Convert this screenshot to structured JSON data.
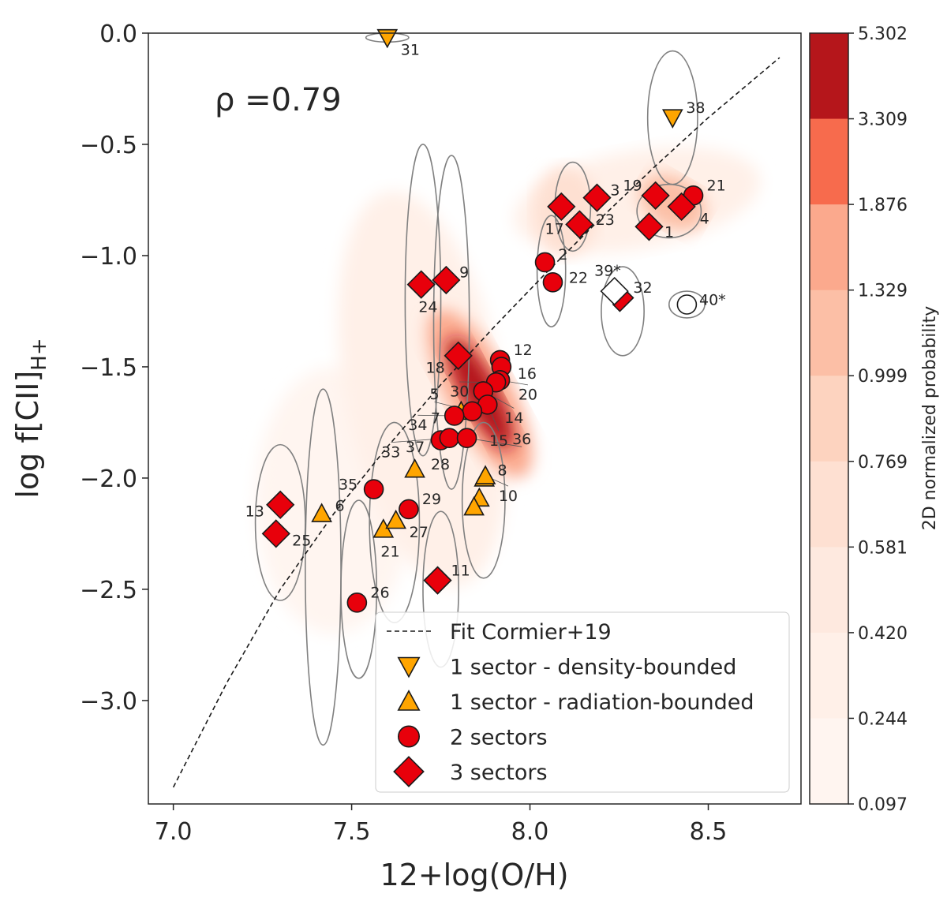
{
  "chart_data": {
    "type": "scatter",
    "xlabel": "12+log(O/H)",
    "ylabel": "log f[CII]",
    "ylabel_sub": "H+",
    "xlim": [
      6.93,
      8.76
    ],
    "ylim": [
      -3.465,
      0.0
    ],
    "xticks": [
      "7.0",
      "7.5",
      "8.0",
      "8.5"
    ],
    "xtick_values": [
      7.0,
      7.5,
      8.0,
      8.5
    ],
    "yticks": [
      "0.0",
      "−0.5",
      "−1.0",
      "−1.5",
      "−2.0",
      "−2.5",
      "−3.0"
    ],
    "ytick_values": [
      0.0,
      -0.5,
      -1.0,
      -1.5,
      -2.0,
      -2.5,
      -3.0
    ],
    "annotation": "ρ =0.79",
    "colorbar": {
      "label": "2D normalized probability",
      "ticks": [
        "5.302",
        "3.309",
        "1.876",
        "1.329",
        "0.999",
        "0.769",
        "0.581",
        "0.420",
        "0.244",
        "0.097"
      ],
      "band_colors": [
        "#b5161b",
        "#f76b4d",
        "#fba98d",
        "#fcbfa6",
        "#fdd3bf",
        "#fee0d2",
        "#fee9df",
        "#fff0e8",
        "#fff5f0"
      ]
    },
    "legend": {
      "placement": "lower-right",
      "entries": [
        {
          "label": "Fit Cormier+19",
          "kind": "line"
        },
        {
          "label": "1 sector - density-bounded",
          "kind": "tri-down"
        },
        {
          "label": "1 sector - radiation-bounded",
          "kind": "tri-up"
        },
        {
          "label": "2 sectors",
          "kind": "circle"
        },
        {
          "label": "3 sectors",
          "kind": "diamond"
        }
      ]
    },
    "colors": {
      "orange": "#ffa500",
      "red": "#e8000b",
      "fit": "#1a1a1a",
      "ellipse": "#808080"
    },
    "fit_line": [
      [
        7.0,
        -3.39
      ],
      [
        7.15,
        -2.92
      ],
      [
        7.3,
        -2.5
      ],
      [
        7.45,
        -2.16
      ],
      [
        7.6,
        -1.86
      ],
      [
        7.75,
        -1.58
      ],
      [
        7.9,
        -1.32
      ],
      [
        8.05,
        -1.07
      ],
      [
        8.2,
        -0.83
      ],
      [
        8.35,
        -0.6
      ],
      [
        8.5,
        -0.38
      ],
      [
        8.7,
        -0.11
      ]
    ],
    "points": [
      {
        "id": "31",
        "type": "tri-down",
        "x": 7.6,
        "y": -0.02
      },
      {
        "id": "38",
        "type": "tri-down",
        "x": 8.4,
        "y": -0.38
      },
      {
        "id": "6",
        "type": "tri-up",
        "x": 7.416,
        "y": -2.16
      },
      {
        "id": "21",
        "type": "tri-up",
        "x": 7.589,
        "y": -2.23
      },
      {
        "id": "27",
        "type": "tri-up",
        "x": 7.624,
        "y": -2.19
      },
      {
        "id": "28",
        "type": "tri-up",
        "x": 7.677,
        "y": -1.96
      },
      {
        "id": "7",
        "type": "tri-up",
        "x": 7.807,
        "y": -1.7
      },
      {
        "id": "8",
        "type": "tri-up",
        "x": 7.872,
        "y": -2.0
      },
      {
        "id": "",
        "type": "tri-up",
        "x": 7.858,
        "y": -2.09
      },
      {
        "id": "",
        "type": "tri-up",
        "x": 7.843,
        "y": -2.13
      },
      {
        "id": "10",
        "type": "tri-up",
        "x": 7.875,
        "y": -1.99
      },
      {
        "id": "35",
        "type": "circle",
        "x": 7.562,
        "y": -2.05
      },
      {
        "id": "29",
        "type": "circle",
        "x": 7.66,
        "y": -2.14
      },
      {
        "id": "26",
        "type": "circle",
        "x": 7.515,
        "y": -2.56
      },
      {
        "id": "2",
        "type": "circle",
        "x": 8.042,
        "y": -1.03
      },
      {
        "id": "22",
        "type": "circle",
        "x": 8.064,
        "y": -1.12
      },
      {
        "id": "21",
        "type": "circle",
        "x": 8.458,
        "y": -0.73
      },
      {
        "id": "12",
        "type": "circle",
        "x": 7.916,
        "y": -1.47
      },
      {
        "id": "16",
        "type": "circle",
        "x": 7.92,
        "y": -1.5
      },
      {
        "id": "20",
        "type": "circle",
        "x": 7.916,
        "y": -1.56
      },
      {
        "id": "30",
        "type": "circle",
        "x": 7.905,
        "y": -1.57
      },
      {
        "id": "14",
        "type": "circle",
        "x": 7.869,
        "y": -1.61
      },
      {
        "id": "15",
        "type": "circle",
        "x": 7.881,
        "y": -1.67
      },
      {
        "id": "5",
        "type": "circle",
        "x": 7.838,
        "y": -1.7
      },
      {
        "id": "34",
        "type": "circle",
        "x": 7.788,
        "y": -1.72
      },
      {
        "id": "37",
        "type": "circle",
        "x": 7.75,
        "y": -1.83
      },
      {
        "id": "33",
        "type": "circle",
        "x": 7.774,
        "y": -1.82
      },
      {
        "id": "36",
        "type": "circle",
        "x": 7.823,
        "y": -1.82
      },
      {
        "id": "13",
        "type": "diamond",
        "x": 7.3,
        "y": -2.12
      },
      {
        "id": "25",
        "type": "diamond",
        "x": 7.288,
        "y": -2.25
      },
      {
        "id": "11",
        "type": "diamond",
        "x": 7.741,
        "y": -2.46
      },
      {
        "id": "24",
        "type": "diamond",
        "x": 7.695,
        "y": -1.13
      },
      {
        "id": "9",
        "type": "diamond",
        "x": 7.765,
        "y": -1.11
      },
      {
        "id": "18",
        "type": "diamond",
        "x": 7.799,
        "y": -1.45
      },
      {
        "id": "17",
        "type": "diamond",
        "x": 8.088,
        "y": -0.78
      },
      {
        "id": "23",
        "type": "diamond",
        "x": 8.139,
        "y": -0.86
      },
      {
        "id": "3",
        "type": "diamond",
        "x": 8.188,
        "y": -0.74
      },
      {
        "id": "19",
        "type": "diamond",
        "x": 8.352,
        "y": -0.73
      },
      {
        "id": "1",
        "type": "diamond",
        "x": 8.334,
        "y": -0.87
      },
      {
        "id": "4",
        "type": "diamond",
        "x": 8.425,
        "y": -0.78
      },
      {
        "id": "32",
        "type": "diamond-half",
        "x": 8.252,
        "y": -1.19
      },
      {
        "id": "39*",
        "type": "diamond-white",
        "x": 8.237,
        "y": -1.16
      },
      {
        "id": "40*",
        "type": "circle-open",
        "x": 8.44,
        "y": -1.22
      }
    ],
    "ellipses": [
      {
        "cx": 7.6,
        "cy": -0.02,
        "rx": 0.06,
        "ry": 0.02
      },
      {
        "cx": 8.4,
        "cy": -0.38,
        "rx": 0.07,
        "ry": 0.3
      },
      {
        "cx": 7.3,
        "cy": -2.2,
        "rx": 0.07,
        "ry": 0.35
      },
      {
        "cx": 7.42,
        "cy": -2.4,
        "rx": 0.05,
        "ry": 0.8
      },
      {
        "cx": 7.52,
        "cy": -2.5,
        "rx": 0.05,
        "ry": 0.4
      },
      {
        "cx": 7.62,
        "cy": -2.2,
        "rx": 0.07,
        "ry": 0.45
      },
      {
        "cx": 7.7,
        "cy": -1.2,
        "rx": 0.05,
        "ry": 0.7
      },
      {
        "cx": 7.78,
        "cy": -1.3,
        "rx": 0.05,
        "ry": 0.75
      },
      {
        "cx": 7.75,
        "cy": -2.5,
        "rx": 0.05,
        "ry": 0.35
      },
      {
        "cx": 7.87,
        "cy": -2.1,
        "rx": 0.06,
        "ry": 0.35
      },
      {
        "cx": 8.06,
        "cy": -1.07,
        "rx": 0.04,
        "ry": 0.25
      },
      {
        "cx": 8.12,
        "cy": -0.78,
        "rx": 0.05,
        "ry": 0.2
      },
      {
        "cx": 8.26,
        "cy": -1.25,
        "rx": 0.06,
        "ry": 0.2
      },
      {
        "cx": 8.44,
        "cy": -1.22,
        "rx": 0.05,
        "ry": 0.06
      },
      {
        "cx": 8.39,
        "cy": -0.8,
        "rx": 0.09,
        "ry": 0.12
      }
    ],
    "density_blobs": [
      {
        "cx": 7.86,
        "cy": -1.62,
        "rx": 0.05,
        "ry": 0.28,
        "rot": -28,
        "level": 0
      },
      {
        "cx": 7.86,
        "cy": -1.62,
        "rx": 0.09,
        "ry": 0.42,
        "rot": -28,
        "level": 2
      },
      {
        "cx": 8.4,
        "cy": -0.76,
        "rx": 0.07,
        "ry": 0.16,
        "rot": -60,
        "level": 3
      },
      {
        "cx": 8.1,
        "cy": -0.8,
        "rx": 0.09,
        "ry": 0.2,
        "rot": 0,
        "level": 5
      },
      {
        "cx": 7.7,
        "cy": -1.6,
        "rx": 0.22,
        "ry": 0.9,
        "rot": -10,
        "level": 7
      },
      {
        "cx": 7.45,
        "cy": -2.1,
        "rx": 0.22,
        "ry": 0.6,
        "rot": 0,
        "level": 8
      },
      {
        "cx": 8.3,
        "cy": -0.75,
        "rx": 0.35,
        "ry": 0.22,
        "rot": -10,
        "level": 7
      }
    ]
  }
}
